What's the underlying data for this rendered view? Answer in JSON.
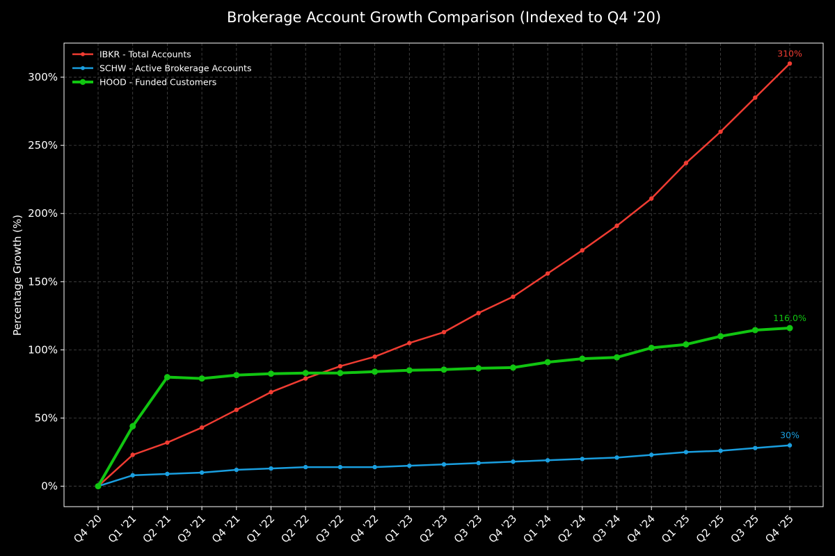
{
  "chart_data": {
    "type": "line",
    "title": "Brokerage Account Growth Comparison (Indexed to Q4 '20)",
    "xlabel": "",
    "ylabel": "Percentage Growth (%)",
    "ylim": [
      -15,
      325
    ],
    "yticks": [
      0,
      50,
      100,
      150,
      200,
      250,
      300
    ],
    "ytick_labels": [
      "0%",
      "50%",
      "100%",
      "150%",
      "200%",
      "250%",
      "300%"
    ],
    "grid": true,
    "legend": "top-left",
    "categories": [
      "Q4 '20",
      "Q1 '21",
      "Q2 '21",
      "Q3 '21",
      "Q4 '21",
      "Q1 '22",
      "Q2 '22",
      "Q3 '22",
      "Q4 '22",
      "Q1 '23",
      "Q2 '23",
      "Q3 '23",
      "Q4 '23",
      "Q1 '24",
      "Q2 '24",
      "Q3 '24",
      "Q4 '24",
      "Q1 '25",
      "Q2 '25",
      "Q3 '25",
      "Q4 '25"
    ],
    "series": [
      {
        "name": "IBKR - Total Accounts",
        "color": "#f03c32",
        "values": [
          0,
          23,
          32,
          43,
          56,
          69,
          79,
          88,
          95,
          105,
          113,
          127,
          139,
          156,
          173,
          191,
          211,
          237,
          260,
          285,
          310
        ],
        "end_label": "310%"
      },
      {
        "name": "SCHW - Active Brokerage Accounts",
        "color": "#1a9fe0",
        "values": [
          0,
          8,
          9,
          10,
          12,
          13,
          14,
          14,
          14,
          15,
          16,
          17,
          18,
          19,
          20,
          21,
          23,
          25,
          26,
          28,
          30
        ],
        "end_label": "30%"
      },
      {
        "name": "HOOD - Funded Customers",
        "color": "#11c511",
        "values": [
          0,
          44,
          80,
          79,
          81.5,
          82.5,
          83,
          83,
          84,
          85,
          85.5,
          86.5,
          87,
          91,
          93.5,
          94.5,
          101.5,
          104,
          110,
          114.5,
          116
        ],
        "end_label": "116.0%"
      }
    ]
  }
}
